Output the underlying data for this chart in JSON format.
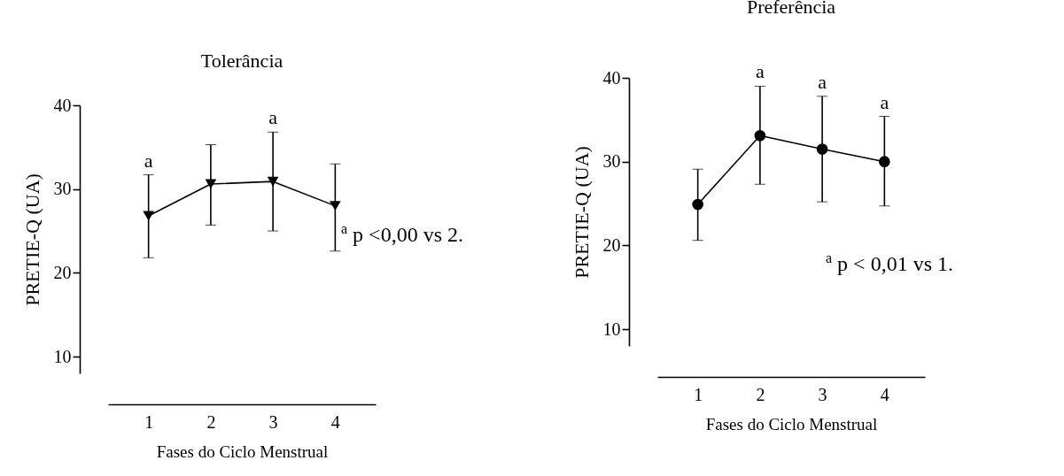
{
  "chart_data": [
    {
      "type": "line",
      "title": "Tolerância",
      "xlabel": "Fases do Ciclo Menstrual",
      "ylabel": "PRETIE-Q (UA)",
      "categories": [
        "1",
        "2",
        "3",
        "4"
      ],
      "series": [
        {
          "color": "#000000",
          "values": [
            26.8,
            30.6,
            30.9,
            28.0
          ],
          "errors": [
            [
              21.8,
              31.7
            ],
            [
              25.7,
              35.3
            ],
            [
              25.0,
              36.8
            ],
            [
              22.6,
              33.0
            ]
          ]
        }
      ],
      "ylim": [
        8,
        40
      ],
      "yticks": [
        10,
        20,
        30,
        40
      ],
      "marker": "triangle",
      "line_style": "solid",
      "annotations": [
        {
          "text": "a",
          "x": "1",
          "y": 31.7
        },
        {
          "text": "a",
          "x": "3",
          "y": 36.8
        },
        "$^{a}$ p <0,00 vs 2."
      ]
    },
    {
      "type": "line",
      "title": "Preferência",
      "xlabel": "Fases do Ciclo Menstrual",
      "ylabel": "PRETIE-Q (UA)",
      "categories": [
        "1",
        "2",
        "3",
        "4"
      ],
      "series": [
        {
          "color": "#000000",
          "values": [
            24.9,
            33.1,
            31.5,
            30.0
          ],
          "errors": [
            [
              20.6,
              29.1
            ],
            [
              27.3,
              39.0
            ],
            [
              25.2,
              37.8
            ],
            [
              24.7,
              35.4
            ]
          ]
        }
      ],
      "ylim": [
        8,
        40
      ],
      "yticks": [
        10,
        20,
        30,
        40
      ],
      "marker": "circle",
      "line_style": "solid",
      "annotations": [
        {
          "text": "a",
          "x": "2",
          "y": 39.0
        },
        {
          "text": "a",
          "x": "3",
          "y": 37.8
        },
        {
          "text": "a",
          "x": "4",
          "y": 35.4
        },
        "$^{a}$ p < 0,01 vs 1."
      ]
    }
  ]
}
